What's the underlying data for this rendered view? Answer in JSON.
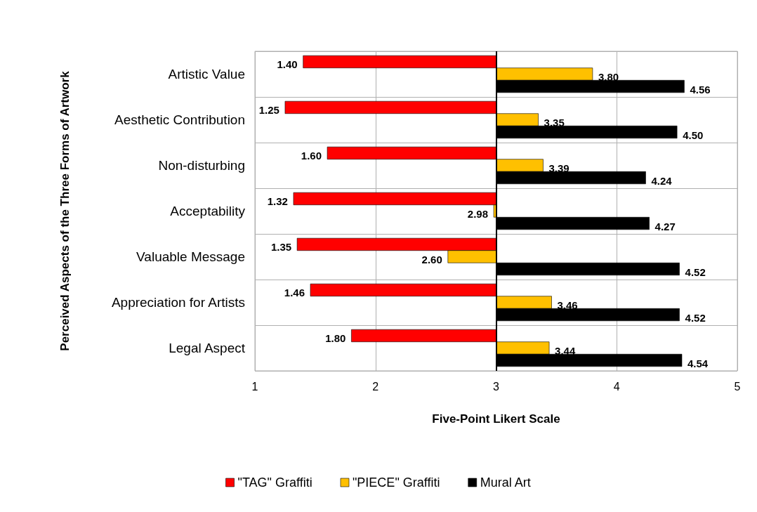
{
  "chart_data": {
    "type": "bar",
    "orientation": "horizontal",
    "xlabel": "Five-Point Likert Scale",
    "ylabel": "Perceived Aspects of the Three Forms of Artwork",
    "categories": [
      "Artistic Value",
      "Aesthetic Contribution",
      "Non-disturbing",
      "Acceptability",
      "Valuable Message",
      "Appreciation for Artists",
      "Legal Aspect"
    ],
    "series": [
      {
        "name": "\"TAG\" Graffiti",
        "color": "#ff0000",
        "base": [
          3,
          3,
          3,
          3,
          3,
          3,
          3
        ],
        "values": [
          -1.6,
          -1.75,
          -1.4,
          -1.68,
          -1.65,
          -1.54,
          -1.2
        ],
        "value_labels": [
          "1.40",
          "1.25",
          "1.60",
          "1.32",
          "1.35",
          "1.46",
          "1.80"
        ]
      },
      {
        "name": "\"PIECE\" Graffiti",
        "color": "#ffc000",
        "base": [
          3,
          3,
          3,
          3,
          3,
          3,
          3
        ],
        "values": [
          0.8,
          0.35,
          0.39,
          -0.02,
          -0.4,
          0.46,
          0.44
        ],
        "value_labels": [
          "3.80",
          "3.35",
          "3.39",
          "2.98",
          "2.60",
          "3.46",
          "3.44"
        ]
      },
      {
        "name": "Mural Art",
        "color": "#000000",
        "base": [
          3,
          3,
          3,
          3,
          3,
          3,
          3
        ],
        "values": [
          1.56,
          1.5,
          1.24,
          1.27,
          1.52,
          1.52,
          1.54
        ],
        "value_labels": [
          "4.56",
          "4.50",
          "4.24",
          "4.27",
          "4.52",
          "4.52",
          "4.54"
        ]
      }
    ],
    "xlim": [
      1,
      5
    ],
    "xticks": [
      1,
      2,
      3,
      4,
      5
    ],
    "grid": true,
    "legend": "bottom",
    "ref_lines": [
      {
        "axis": "x",
        "value": 3,
        "color": "#000000"
      }
    ]
  }
}
